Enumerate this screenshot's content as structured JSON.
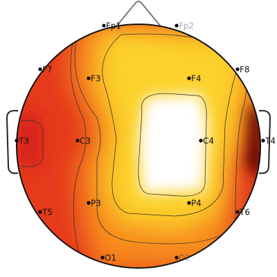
{
  "electrodes": [
    {
      "label": "Fp1"
    },
    {
      "label": "Fp2"
    },
    {
      "label": "F7"
    },
    {
      "label": "F3"
    },
    {
      "label": "F4"
    },
    {
      "label": "F8"
    },
    {
      "label": "T3"
    },
    {
      "label": "C3"
    },
    {
      "label": "C4"
    },
    {
      "label": "T4"
    },
    {
      "label": "T5"
    },
    {
      "label": "P3"
    },
    {
      "label": "P4"
    },
    {
      "label": "T6"
    },
    {
      "label": "O1"
    },
    {
      "label": "O2"
    }
  ]
}
